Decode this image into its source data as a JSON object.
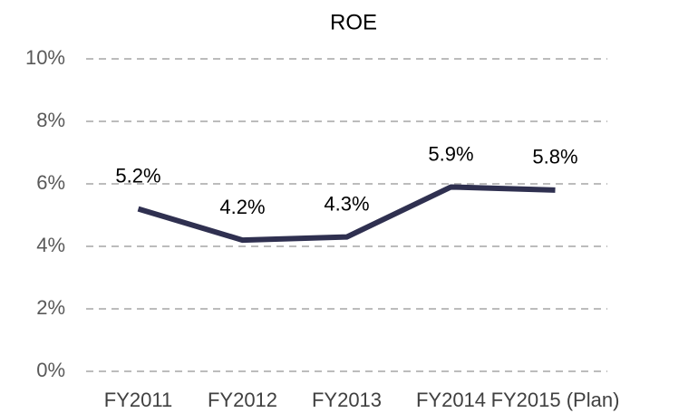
{
  "chart_data": {
    "type": "line",
    "title": "ROE",
    "categories": [
      "FY2011",
      "FY2012",
      "FY2013",
      "FY2014",
      "FY2015 (Plan)"
    ],
    "series": [
      {
        "name": "ROE",
        "color": "#2f3050",
        "values": [
          5.2,
          4.2,
          4.3,
          5.9,
          5.8
        ],
        "value_labels": [
          "5.2%",
          "4.2%",
          "4.3%",
          "5.9%",
          "5.8%"
        ]
      }
    ],
    "ylim": [
      0,
      10
    ],
    "yticks": [
      {
        "value": 0,
        "label": "0%"
      },
      {
        "value": 2,
        "label": "2%"
      },
      {
        "value": 4,
        "label": "4%"
      },
      {
        "value": 6,
        "label": "6%"
      },
      {
        "value": 8,
        "label": "8%"
      },
      {
        "value": 10,
        "label": "10%"
      }
    ],
    "grid": true
  }
}
